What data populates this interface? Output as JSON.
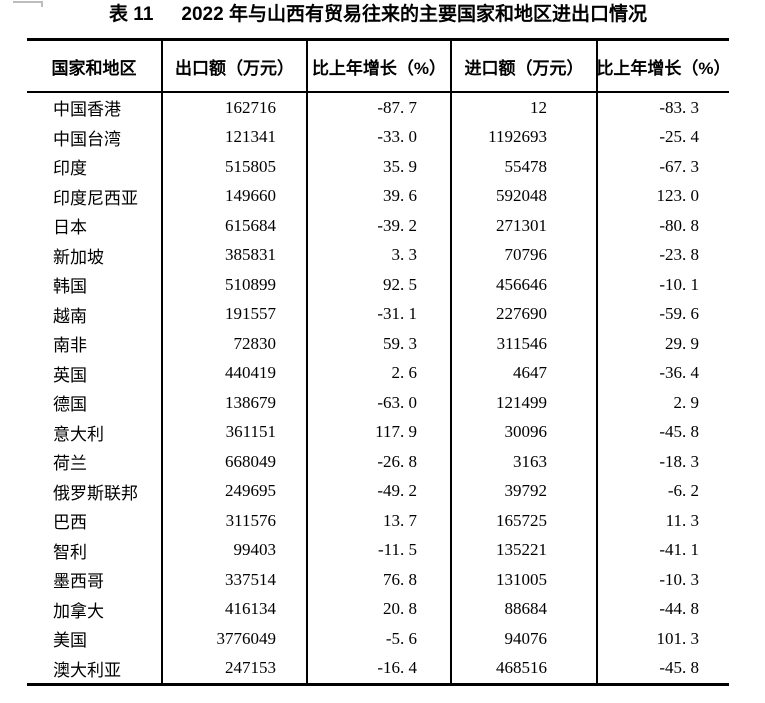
{
  "title": {
    "label": "表 11",
    "text": "2022 年与山西有贸易往来的主要国家和地区进出口情况"
  },
  "table": {
    "columns": [
      "国家和地区",
      "出口额（万元）",
      "比上年增长（%）",
      "进口额（万元）",
      "比上年增长（%）"
    ],
    "rows": [
      {
        "country": "中国香港",
        "export": "162716",
        "export_growth": "-87. 7",
        "import": "12",
        "import_growth": "-83. 3"
      },
      {
        "country": "中国台湾",
        "export": "121341",
        "export_growth": "-33. 0",
        "import": "1192693",
        "import_growth": "-25. 4"
      },
      {
        "country": "印度",
        "export": "515805",
        "export_growth": "35. 9",
        "import": "55478",
        "import_growth": "-67. 3"
      },
      {
        "country": "印度尼西亚",
        "export": "149660",
        "export_growth": "39. 6",
        "import": "592048",
        "import_growth": "123. 0"
      },
      {
        "country": "日本",
        "export": "615684",
        "export_growth": "-39. 2",
        "import": "271301",
        "import_growth": "-80. 8"
      },
      {
        "country": "新加坡",
        "export": "385831",
        "export_growth": "3. 3",
        "import": "70796",
        "import_growth": "-23. 8"
      },
      {
        "country": "韩国",
        "export": "510899",
        "export_growth": "92. 5",
        "import": "456646",
        "import_growth": "-10. 1"
      },
      {
        "country": "越南",
        "export": "191557",
        "export_growth": "-31. 1",
        "import": "227690",
        "import_growth": "-59. 6"
      },
      {
        "country": "南非",
        "export": "72830",
        "export_growth": "59. 3",
        "import": "311546",
        "import_growth": "29. 9"
      },
      {
        "country": "英国",
        "export": "440419",
        "export_growth": "2. 6",
        "import": "4647",
        "import_growth": "-36. 4"
      },
      {
        "country": "德国",
        "export": "138679",
        "export_growth": "-63. 0",
        "import": "121499",
        "import_growth": "2. 9"
      },
      {
        "country": "意大利",
        "export": "361151",
        "export_growth": "117. 9",
        "import": "30096",
        "import_growth": "-45. 8"
      },
      {
        "country": "荷兰",
        "export": "668049",
        "export_growth": "-26. 8",
        "import": "3163",
        "import_growth": "-18. 3"
      },
      {
        "country": "俄罗斯联邦",
        "export": "249695",
        "export_growth": "-49. 2",
        "import": "39792",
        "import_growth": "-6. 2"
      },
      {
        "country": "巴西",
        "export": "311576",
        "export_growth": "13. 7",
        "import": "165725",
        "import_growth": "11. 3"
      },
      {
        "country": "智利",
        "export": "99403",
        "export_growth": "-11. 5",
        "import": "135221",
        "import_growth": "-41. 1"
      },
      {
        "country": "墨西哥",
        "export": "337514",
        "export_growth": "76. 8",
        "import": "131005",
        "import_growth": "-10. 3"
      },
      {
        "country": "加拿大",
        "export": "416134",
        "export_growth": "20. 8",
        "import": "88684",
        "import_growth": "-44. 8"
      },
      {
        "country": "美国",
        "export": "3776049",
        "export_growth": "-5. 6",
        "import": "94076",
        "import_growth": "101. 3"
      },
      {
        "country": "澳大利亚",
        "export": "247153",
        "export_growth": "-16. 4",
        "import": "468516",
        "import_growth": "-45. 8"
      }
    ]
  }
}
